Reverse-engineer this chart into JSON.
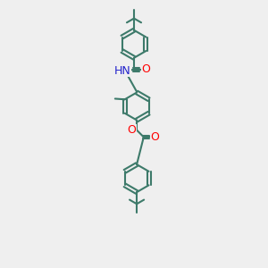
{
  "bg_color": "#efefef",
  "bond_color": "#3d7a6a",
  "bond_width": 1.5,
  "atom_colors": {
    "O": "#ff0000",
    "N": "#2222cc",
    "H": "#888888",
    "C": "#3d7a6a"
  },
  "figsize": [
    3.0,
    3.0
  ],
  "dpi": 100
}
